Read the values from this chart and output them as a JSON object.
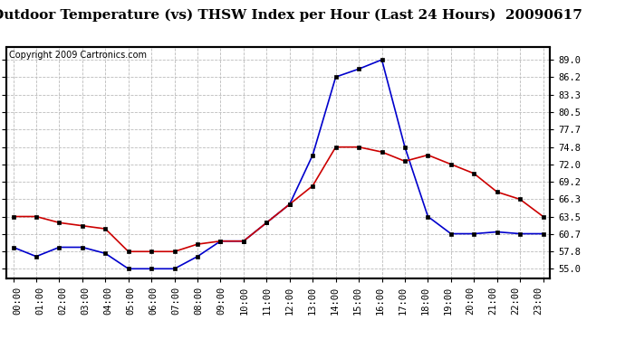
{
  "title": "Outdoor Temperature (vs) THSW Index per Hour (Last 24 Hours)  20090617",
  "copyright": "Copyright 2009 Cartronics.com",
  "hours": [
    "00:00",
    "01:00",
    "02:00",
    "03:00",
    "04:00",
    "05:00",
    "06:00",
    "07:00",
    "08:00",
    "09:00",
    "10:00",
    "11:00",
    "12:00",
    "13:00",
    "14:00",
    "15:00",
    "16:00",
    "17:00",
    "18:00",
    "19:00",
    "20:00",
    "21:00",
    "22:00",
    "23:00"
  ],
  "temp_red": [
    63.5,
    63.5,
    62.5,
    62.0,
    61.5,
    57.8,
    57.8,
    57.8,
    59.0,
    59.5,
    59.5,
    62.5,
    65.5,
    68.5,
    74.8,
    74.8,
    74.0,
    72.5,
    73.5,
    72.0,
    70.5,
    67.5,
    66.3,
    63.5
  ],
  "thsw_blue": [
    58.5,
    57.0,
    58.5,
    58.5,
    57.5,
    55.0,
    55.0,
    55.0,
    57.0,
    59.5,
    59.5,
    62.5,
    65.5,
    73.5,
    86.2,
    87.5,
    89.0,
    74.8,
    63.5,
    60.7,
    60.7,
    61.0,
    60.7,
    60.7
  ],
  "yticks": [
    55.0,
    57.8,
    60.7,
    63.5,
    66.3,
    69.2,
    72.0,
    74.8,
    77.7,
    80.5,
    83.3,
    86.2,
    89.0
  ],
  "ylim": [
    53.5,
    91.0
  ],
  "bg_color": "#FFFFFF",
  "grid_color": "#BBBBBB",
  "red_color": "#CC0000",
  "blue_color": "#0000CC",
  "marker_color": "#000000",
  "title_fontsize": 11,
  "copyright_fontsize": 7,
  "tick_fontsize": 7.5,
  "border_color": "#000000"
}
